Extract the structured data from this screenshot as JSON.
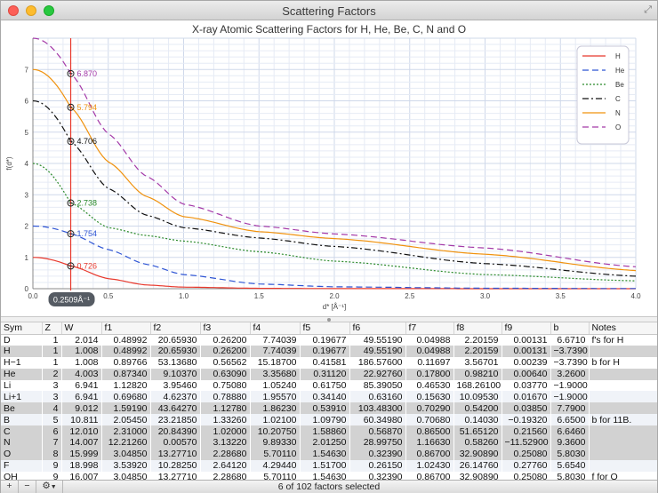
{
  "window": {
    "title": "Scattering Factors"
  },
  "chart_data": {
    "type": "line",
    "title": "X-ray Atomic Scattering Factors for H, He, Be, C, N and O",
    "xlabel": "d* [Å⁻¹]",
    "ylabel": "f(d*)",
    "xlim": [
      0,
      4.0
    ],
    "ylim": [
      0,
      8
    ],
    "xticks": [
      "0.0",
      "0.5",
      "1.0",
      "1.5",
      "2.0",
      "2.5",
      "3.0",
      "3.5",
      "4.0"
    ],
    "yticks": [
      "0",
      "1",
      "2",
      "3",
      "4",
      "5",
      "6",
      "7"
    ],
    "grid": true,
    "legend_position": "top-right",
    "cursor": {
      "x": 0.2509,
      "label": "0.2509Å⁻¹"
    },
    "series": [
      {
        "name": "H",
        "color": "#e8382c",
        "dash": "solid",
        "f0": 1,
        "readout": "0.726",
        "x": [
          0,
          0.25,
          0.5,
          0.75,
          1.0,
          1.5,
          2.0,
          3.0,
          4.0
        ],
        "y": [
          1.0,
          0.726,
          0.32,
          0.12,
          0.05,
          0.012,
          0.004,
          0.001,
          0.0
        ]
      },
      {
        "name": "He",
        "color": "#2f55d4",
        "dash": "dashed",
        "f0": 2,
        "readout": "1.754",
        "x": [
          0,
          0.25,
          0.5,
          0.75,
          1.0,
          1.5,
          2.0,
          3.0,
          4.0
        ],
        "y": [
          2.0,
          1.754,
          1.25,
          0.78,
          0.45,
          0.15,
          0.06,
          0.015,
          0.005
        ]
      },
      {
        "name": "Be",
        "color": "#2b8a2b",
        "dash": "dotted",
        "f0": 4,
        "readout": "2.738",
        "x": [
          0,
          0.25,
          0.5,
          0.75,
          1.0,
          1.5,
          2.0,
          3.0,
          4.0
        ],
        "y": [
          4.0,
          2.738,
          1.95,
          1.7,
          1.52,
          1.18,
          0.88,
          0.45,
          0.25
        ]
      },
      {
        "name": "C",
        "color": "#111111",
        "dash": "dashdot",
        "f0": 6,
        "readout": "4.706",
        "x": [
          0,
          0.25,
          0.5,
          0.75,
          1.0,
          1.5,
          2.0,
          3.0,
          4.0
        ],
        "y": [
          6.0,
          4.706,
          3.2,
          2.35,
          1.95,
          1.62,
          1.35,
          0.8,
          0.4
        ]
      },
      {
        "name": "N",
        "color": "#f0920e",
        "dash": "solid",
        "f0": 7,
        "readout": "5.794",
        "x": [
          0,
          0.25,
          0.5,
          0.75,
          1.0,
          1.5,
          2.0,
          3.0,
          4.0
        ],
        "y": [
          7.0,
          5.794,
          4.05,
          2.95,
          2.3,
          1.82,
          1.6,
          1.1,
          0.58
        ]
      },
      {
        "name": "O",
        "color": "#a43aa8",
        "dash": "dashed",
        "f0": 8,
        "readout": "6.870",
        "x": [
          0,
          0.25,
          0.5,
          0.75,
          1.0,
          1.5,
          2.0,
          3.0,
          4.0
        ],
        "y": [
          8.0,
          6.87,
          4.95,
          3.6,
          2.7,
          2.0,
          1.75,
          1.3,
          0.7
        ]
      }
    ]
  },
  "table": {
    "columns": [
      "Sym",
      "Z",
      "W",
      "f1",
      "f2",
      "f3",
      "f4",
      "f5",
      "f6",
      "f7",
      "f8",
      "f9",
      "b",
      "Notes"
    ],
    "rows": [
      {
        "sel": false,
        "cells": [
          "D",
          "1",
          "2.014",
          "0.48992",
          "20.65930",
          "0.26200",
          "7.74039",
          "0.19677",
          "49.55190",
          "0.04988",
          "2.20159",
          "0.00131",
          "6.6710",
          "f's for H"
        ]
      },
      {
        "sel": true,
        "cells": [
          "H",
          "1",
          "1.008",
          "0.48992",
          "20.65930",
          "0.26200",
          "7.74039",
          "0.19677",
          "49.55190",
          "0.04988",
          "2.20159",
          "0.00131",
          "−3.7390",
          ""
        ]
      },
      {
        "sel": false,
        "cells": [
          "H−1",
          "1",
          "1.008",
          "0.89766",
          "53.13680",
          "0.56562",
          "15.18700",
          "0.41581",
          "186.57600",
          "0.11697",
          "3.56701",
          "0.00239",
          "−3.7390",
          "b for H"
        ]
      },
      {
        "sel": true,
        "cells": [
          "He",
          "2",
          "4.003",
          "0.87340",
          "9.10370",
          "0.63090",
          "3.35680",
          "0.31120",
          "22.92760",
          "0.17800",
          "0.98210",
          "0.00640",
          "3.2600",
          ""
        ]
      },
      {
        "sel": false,
        "cells": [
          "Li",
          "3",
          "6.941",
          "1.12820",
          "3.95460",
          "0.75080",
          "1.05240",
          "0.61750",
          "85.39050",
          "0.46530",
          "168.26100",
          "0.03770",
          "−1.9000",
          ""
        ]
      },
      {
        "sel": false,
        "cells": [
          "Li+1",
          "3",
          "6.941",
          "0.69680",
          "4.62370",
          "0.78880",
          "1.95570",
          "0.34140",
          "0.63160",
          "0.15630",
          "10.09530",
          "0.01670",
          "−1.9000",
          ""
        ]
      },
      {
        "sel": true,
        "cells": [
          "Be",
          "4",
          "9.012",
          "1.59190",
          "43.64270",
          "1.12780",
          "1.86230",
          "0.53910",
          "103.48300",
          "0.70290",
          "0.54200",
          "0.03850",
          "7.7900",
          ""
        ]
      },
      {
        "sel": false,
        "cells": [
          "B",
          "5",
          "10.811",
          "2.05450",
          "23.21850",
          "1.33260",
          "1.02100",
          "1.09790",
          "60.34980",
          "0.70680",
          "0.14030",
          "−0.19320",
          "6.6500",
          "b for 11B."
        ]
      },
      {
        "sel": true,
        "cells": [
          "C",
          "6",
          "12.010",
          "2.31000",
          "20.84390",
          "1.02000",
          "10.20750",
          "1.58860",
          "0.56870",
          "0.86500",
          "51.65120",
          "0.21560",
          "6.6460",
          ""
        ]
      },
      {
        "sel": true,
        "cells": [
          "N",
          "7",
          "14.007",
          "12.21260",
          "0.00570",
          "3.13220",
          "9.89330",
          "2.01250",
          "28.99750",
          "1.16630",
          "0.58260",
          "−11.52900",
          "9.3600",
          ""
        ]
      },
      {
        "sel": true,
        "cells": [
          "O",
          "8",
          "15.999",
          "3.04850",
          "13.27710",
          "2.28680",
          "5.70110",
          "1.54630",
          "0.32390",
          "0.86700",
          "32.90890",
          "0.25080",
          "5.8030",
          ""
        ]
      },
      {
        "sel": false,
        "cells": [
          "F",
          "9",
          "18.998",
          "3.53920",
          "10.28250",
          "2.64120",
          "4.29440",
          "1.51700",
          "0.26150",
          "1.02430",
          "26.14760",
          "0.27760",
          "5.6540",
          ""
        ]
      },
      {
        "sel": false,
        "cells": [
          "OH",
          "9",
          "16.007",
          "3.04850",
          "13.27710",
          "2.28680",
          "5.70110",
          "1.54630",
          "0.32390",
          "0.86700",
          "32.90890",
          "0.25080",
          "5.8030",
          "f for O"
        ]
      }
    ]
  },
  "bottom_bar": {
    "add_label": "+",
    "remove_label": "−",
    "gear_icon": "gear-icon",
    "status": "6 of 102 factors selected"
  }
}
